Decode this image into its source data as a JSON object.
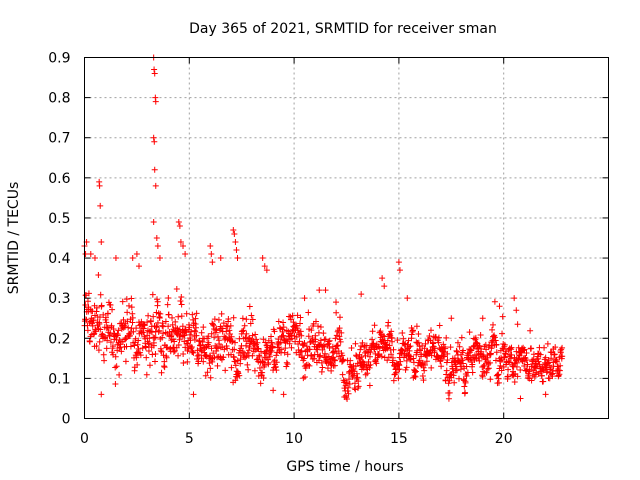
{
  "chart_data": {
    "type": "scatter",
    "title": "Day 365 of 2021, SRMTID for receiver sman",
    "xlabel": "GPS time / hours",
    "ylabel": "SRMTID / TECUs",
    "xlim": [
      0,
      25
    ],
    "ylim": [
      0,
      0.9
    ],
    "xticks": [
      0,
      5,
      10,
      15,
      20
    ],
    "xtick_labels": [
      "0",
      "5",
      "10",
      "15",
      "20"
    ],
    "yticks": [
      0,
      0.1,
      0.2,
      0.3,
      0.4,
      0.5,
      0.6,
      0.7,
      0.8,
      0.9
    ],
    "ytick_labels": [
      "0",
      "0.1",
      "0.2",
      "0.3",
      "0.4",
      "0.5",
      "0.6",
      "0.7",
      "0.8",
      "0.9"
    ],
    "grid": true,
    "marker": "+",
    "marker_color": "#ff0000",
    "series": [
      {
        "name": "SRMTID",
        "x_range": [
          0,
          22.8
        ],
        "profile": [
          {
            "x": 0.0,
            "center": 0.22,
            "spread": 0.13
          },
          {
            "x": 1.0,
            "center": 0.21,
            "spread": 0.12
          },
          {
            "x": 2.5,
            "center": 0.21,
            "spread": 0.11
          },
          {
            "x": 3.5,
            "center": 0.22,
            "spread": 0.12
          },
          {
            "x": 5.0,
            "center": 0.18,
            "spread": 0.11
          },
          {
            "x": 7.0,
            "center": 0.19,
            "spread": 0.11
          },
          {
            "x": 8.5,
            "center": 0.17,
            "spread": 0.1
          },
          {
            "x": 10.0,
            "center": 0.19,
            "spread": 0.1
          },
          {
            "x": 11.5,
            "center": 0.17,
            "spread": 0.09
          },
          {
            "x": 13.0,
            "center": 0.16,
            "spread": 0.08
          },
          {
            "x": 15.0,
            "center": 0.16,
            "spread": 0.08
          },
          {
            "x": 17.0,
            "center": 0.15,
            "spread": 0.07
          },
          {
            "x": 19.0,
            "center": 0.15,
            "spread": 0.07
          },
          {
            "x": 21.0,
            "center": 0.15,
            "spread": 0.07
          },
          {
            "x": 22.8,
            "center": 0.15,
            "spread": 0.06
          }
        ],
        "spikes": [
          [
            0.0,
            0.43
          ],
          [
            0.05,
            0.41
          ],
          [
            0.1,
            0.44
          ],
          [
            0.3,
            0.41
          ],
          [
            0.5,
            0.4
          ],
          [
            0.7,
            0.59
          ],
          [
            0.72,
            0.58
          ],
          [
            0.75,
            0.53
          ],
          [
            0.8,
            0.44
          ],
          [
            0.8,
            0.06
          ],
          [
            1.5,
            0.4
          ],
          [
            2.3,
            0.4
          ],
          [
            2.5,
            0.41
          ],
          [
            2.6,
            0.38
          ],
          [
            3.3,
            0.9
          ],
          [
            3.32,
            0.87
          ],
          [
            3.35,
            0.86
          ],
          [
            3.38,
            0.8
          ],
          [
            3.4,
            0.79
          ],
          [
            3.3,
            0.7
          ],
          [
            3.33,
            0.69
          ],
          [
            3.35,
            0.62
          ],
          [
            3.4,
            0.58
          ],
          [
            3.3,
            0.49
          ],
          [
            3.45,
            0.45
          ],
          [
            3.5,
            0.43
          ],
          [
            3.6,
            0.4
          ],
          [
            4.5,
            0.49
          ],
          [
            4.55,
            0.48
          ],
          [
            4.6,
            0.44
          ],
          [
            4.7,
            0.43
          ],
          [
            4.8,
            0.41
          ],
          [
            5.2,
            0.06
          ],
          [
            6.0,
            0.43
          ],
          [
            6.05,
            0.41
          ],
          [
            6.1,
            0.39
          ],
          [
            6.5,
            0.4
          ],
          [
            7.1,
            0.47
          ],
          [
            7.15,
            0.46
          ],
          [
            7.2,
            0.44
          ],
          [
            7.25,
            0.42
          ],
          [
            7.3,
            0.4
          ],
          [
            8.5,
            0.4
          ],
          [
            8.6,
            0.38
          ],
          [
            8.7,
            0.37
          ],
          [
            9.0,
            0.07
          ],
          [
            9.5,
            0.06
          ],
          [
            10.5,
            0.3
          ],
          [
            11.2,
            0.32
          ],
          [
            11.5,
            0.32
          ],
          [
            12.0,
            0.29
          ],
          [
            13.2,
            0.31
          ],
          [
            14.2,
            0.35
          ],
          [
            14.3,
            0.33
          ],
          [
            15.0,
            0.39
          ],
          [
            15.05,
            0.37
          ],
          [
            15.4,
            0.3
          ],
          [
            17.5,
            0.25
          ],
          [
            19.0,
            0.25
          ],
          [
            19.8,
            0.28
          ],
          [
            20.5,
            0.3
          ],
          [
            20.6,
            0.27
          ],
          [
            20.8,
            0.05
          ],
          [
            22.0,
            0.06
          ]
        ],
        "num_points": 1500
      }
    ]
  }
}
